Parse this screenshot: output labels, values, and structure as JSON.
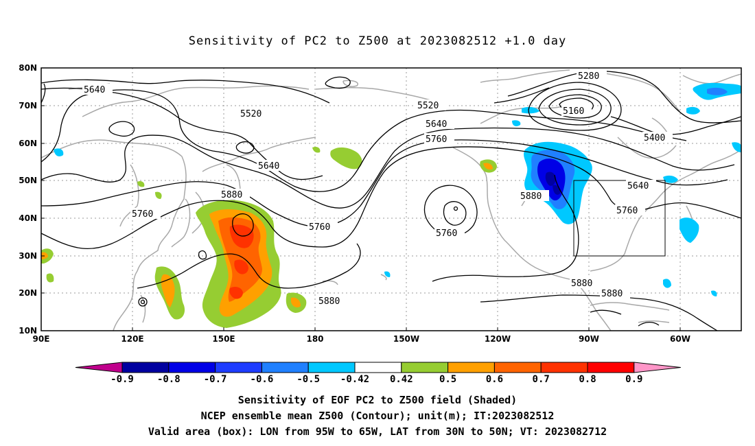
{
  "title": "Sensitivity of PC2 to Z500 at 2023082512 +1.0 day",
  "captions": [
    "Sensitivity of EOF PC2 to Z500 field (Shaded)",
    "NCEP ensemble mean Z500 (Contour); unit(m); IT:2023082512",
    "Valid area (box): LON from 95W to 65W, LAT from 30N to 50N; VT: 2023082712"
  ],
  "map": {
    "lon_range": [
      90,
      320
    ],
    "lat_range": [
      10,
      80
    ],
    "lat_ticks": [
      "10N",
      "20N",
      "30N",
      "40N",
      "50N",
      "60N",
      "70N",
      "80N"
    ],
    "lon_ticks": [
      "90E",
      "120E",
      "150E",
      "180",
      "150W",
      "120W",
      "90W",
      "60W"
    ],
    "valid_box": {
      "lon_min": "95W",
      "lon_max": "65W",
      "lat_min": "30N",
      "lat_max": "50N"
    },
    "contour_labels": [
      "5640",
      "5520",
      "5520",
      "5640",
      "5760",
      "5640",
      "5880",
      "5760",
      "5760",
      "5760",
      "5280",
      "5160",
      "5400",
      "5640",
      "5880",
      "5760",
      "5880",
      "5880",
      "5880"
    ],
    "grid": true
  },
  "colorbar": {
    "labels": [
      "-0.9",
      "-0.8",
      "-0.7",
      "-0.6",
      "-0.5",
      "-0.42",
      "0.42",
      "0.5",
      "0.6",
      "0.7",
      "0.8",
      "0.9"
    ],
    "colors": [
      "#c0008c",
      "#0000a0",
      "#0000e6",
      "#1e3cff",
      "#2080ff",
      "#00c8ff",
      "#ffffff",
      "#96cd32",
      "#ffa000",
      "#ff6400",
      "#ff3200",
      "#ff0000",
      "#ff96c8"
    ]
  }
}
